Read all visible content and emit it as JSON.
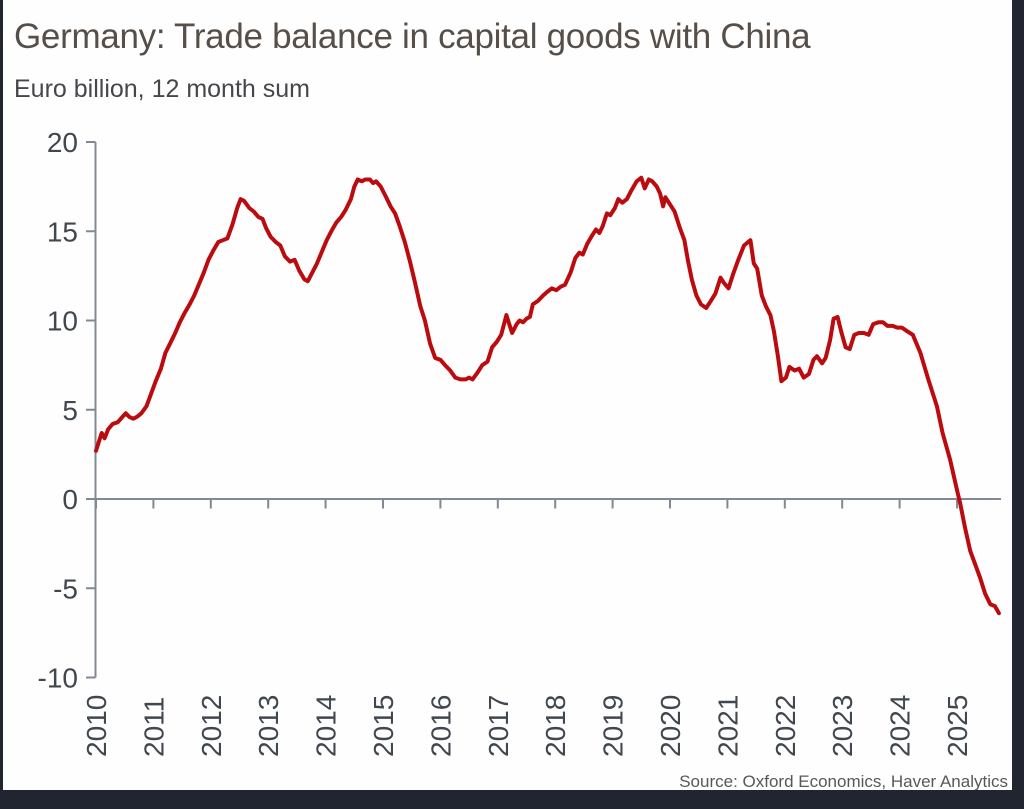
{
  "header": {
    "title": "Germany: Trade balance in capital goods with China",
    "subtitle": "Euro billion, 12 month sum"
  },
  "footer": {
    "source": "Source: Oxford Economics, Haver Analytics"
  },
  "colors": {
    "line_red": "#bc0b0f",
    "axis_gray": "#828992",
    "tick_label": "#41474f",
    "title_text": "#564f49",
    "subtitle_text": "#45474b",
    "source_text": "#585858",
    "frame_dark": "#212530",
    "background": "#ffffff"
  },
  "chart_data": {
    "type": "line",
    "title": "Germany: Trade balance in capital goods with China",
    "units": "Euro billion, 12 month sum",
    "xlabel": "",
    "ylabel": "",
    "ylim": [
      -10,
      20
    ],
    "x_range_years": [
      2010,
      2025.75
    ],
    "grid": "zero-line-only",
    "legend": "none",
    "y_ticks": [
      20,
      15,
      10,
      5,
      0,
      -5,
      -10
    ],
    "y_tick_labels": [
      "20",
      "15",
      "10",
      "5",
      "0",
      "-5",
      "-10"
    ],
    "x_tick_labels": [
      "2010",
      "2011",
      "2012",
      "2013",
      "2014",
      "2015",
      "2016",
      "2017",
      "2018",
      "2019",
      "2020",
      "2021",
      "2022",
      "2023",
      "2024",
      "2025"
    ],
    "series": [
      {
        "name": "Trade balance in capital goods with China, EUR bn 12m sum",
        "color": "#bc0b0f",
        "points": [
          [
            2010.0,
            2.7
          ],
          [
            2010.06,
            3.3
          ],
          [
            2010.1,
            3.7
          ],
          [
            2010.15,
            3.4
          ],
          [
            2010.21,
            3.9
          ],
          [
            2010.29,
            4.2
          ],
          [
            2010.38,
            4.3
          ],
          [
            2010.46,
            4.6
          ],
          [
            2010.52,
            4.8
          ],
          [
            2010.58,
            4.6
          ],
          [
            2010.65,
            4.5
          ],
          [
            2010.71,
            4.6
          ],
          [
            2010.79,
            4.8
          ],
          [
            2010.88,
            5.2
          ],
          [
            2010.96,
            5.9
          ],
          [
            2011.04,
            6.6
          ],
          [
            2011.13,
            7.3
          ],
          [
            2011.21,
            8.2
          ],
          [
            2011.29,
            8.7
          ],
          [
            2011.38,
            9.3
          ],
          [
            2011.46,
            9.9
          ],
          [
            2011.54,
            10.4
          ],
          [
            2011.63,
            10.9
          ],
          [
            2011.71,
            11.4
          ],
          [
            2011.79,
            12.0
          ],
          [
            2011.88,
            12.7
          ],
          [
            2011.96,
            13.4
          ],
          [
            2012.04,
            13.9
          ],
          [
            2012.13,
            14.4
          ],
          [
            2012.21,
            14.5
          ],
          [
            2012.29,
            14.6
          ],
          [
            2012.38,
            15.4
          ],
          [
            2012.46,
            16.3
          ],
          [
            2012.52,
            16.8
          ],
          [
            2012.58,
            16.7
          ],
          [
            2012.67,
            16.3
          ],
          [
            2012.75,
            16.1
          ],
          [
            2012.83,
            15.8
          ],
          [
            2012.9,
            15.7
          ],
          [
            2012.96,
            15.2
          ],
          [
            2013.04,
            14.7
          ],
          [
            2013.13,
            14.4
          ],
          [
            2013.21,
            14.2
          ],
          [
            2013.29,
            13.6
          ],
          [
            2013.38,
            13.3
          ],
          [
            2013.46,
            13.4
          ],
          [
            2013.54,
            12.8
          ],
          [
            2013.63,
            12.3
          ],
          [
            2013.69,
            12.2
          ],
          [
            2013.77,
            12.7
          ],
          [
            2013.85,
            13.2
          ],
          [
            2013.94,
            13.9
          ],
          [
            2014.02,
            14.5
          ],
          [
            2014.1,
            15.0
          ],
          [
            2014.19,
            15.5
          ],
          [
            2014.27,
            15.8
          ],
          [
            2014.35,
            16.2
          ],
          [
            2014.44,
            16.8
          ],
          [
            2014.5,
            17.5
          ],
          [
            2014.56,
            17.9
          ],
          [
            2014.63,
            17.8
          ],
          [
            2014.69,
            17.9
          ],
          [
            2014.77,
            17.9
          ],
          [
            2014.83,
            17.7
          ],
          [
            2014.88,
            17.8
          ],
          [
            2014.96,
            17.5
          ],
          [
            2015.04,
            17.0
          ],
          [
            2015.13,
            16.4
          ],
          [
            2015.21,
            16.0
          ],
          [
            2015.29,
            15.3
          ],
          [
            2015.38,
            14.4
          ],
          [
            2015.47,
            13.3
          ],
          [
            2015.56,
            12.1
          ],
          [
            2015.65,
            10.8
          ],
          [
            2015.73,
            10.0
          ],
          [
            2015.82,
            8.7
          ],
          [
            2015.91,
            7.9
          ],
          [
            2016.0,
            7.8
          ],
          [
            2016.08,
            7.5
          ],
          [
            2016.17,
            7.2
          ],
          [
            2016.26,
            6.8
          ],
          [
            2016.35,
            6.7
          ],
          [
            2016.44,
            6.7
          ],
          [
            2016.5,
            6.8
          ],
          [
            2016.56,
            6.7
          ],
          [
            2016.65,
            7.1
          ],
          [
            2016.73,
            7.5
          ],
          [
            2016.82,
            7.7
          ],
          [
            2016.9,
            8.5
          ],
          [
            2016.98,
            8.8
          ],
          [
            2017.06,
            9.2
          ],
          [
            2017.15,
            10.3
          ],
          [
            2017.25,
            9.3
          ],
          [
            2017.33,
            9.8
          ],
          [
            2017.38,
            10.0
          ],
          [
            2017.44,
            9.9
          ],
          [
            2017.5,
            10.1
          ],
          [
            2017.56,
            10.2
          ],
          [
            2017.61,
            10.9
          ],
          [
            2017.7,
            11.1
          ],
          [
            2017.79,
            11.4
          ],
          [
            2017.86,
            11.6
          ],
          [
            2017.94,
            11.8
          ],
          [
            2018.02,
            11.7
          ],
          [
            2018.1,
            11.9
          ],
          [
            2018.17,
            12.0
          ],
          [
            2018.27,
            12.7
          ],
          [
            2018.35,
            13.5
          ],
          [
            2018.42,
            13.8
          ],
          [
            2018.48,
            13.7
          ],
          [
            2018.56,
            14.3
          ],
          [
            2018.65,
            14.8
          ],
          [
            2018.71,
            15.1
          ],
          [
            2018.77,
            14.9
          ],
          [
            2018.83,
            15.3
          ],
          [
            2018.9,
            16.0
          ],
          [
            2018.96,
            15.9
          ],
          [
            2019.04,
            16.3
          ],
          [
            2019.1,
            16.8
          ],
          [
            2019.17,
            16.6
          ],
          [
            2019.25,
            16.8
          ],
          [
            2019.33,
            17.3
          ],
          [
            2019.42,
            17.8
          ],
          [
            2019.5,
            18.0
          ],
          [
            2019.56,
            17.4
          ],
          [
            2019.63,
            17.9
          ],
          [
            2019.69,
            17.8
          ],
          [
            2019.77,
            17.5
          ],
          [
            2019.83,
            17.1
          ],
          [
            2019.88,
            16.4
          ],
          [
            2019.92,
            16.9
          ],
          [
            2019.98,
            16.6
          ],
          [
            2020.08,
            16.1
          ],
          [
            2020.17,
            15.2
          ],
          [
            2020.25,
            14.5
          ],
          [
            2020.31,
            13.4
          ],
          [
            2020.38,
            12.3
          ],
          [
            2020.46,
            11.4
          ],
          [
            2020.54,
            10.9
          ],
          [
            2020.63,
            10.7
          ],
          [
            2020.71,
            11.1
          ],
          [
            2020.79,
            11.5
          ],
          [
            2020.88,
            12.4
          ],
          [
            2020.94,
            12.1
          ],
          [
            2021.02,
            11.8
          ],
          [
            2021.1,
            12.6
          ],
          [
            2021.19,
            13.4
          ],
          [
            2021.29,
            14.2
          ],
          [
            2021.4,
            14.5
          ],
          [
            2021.46,
            13.2
          ],
          [
            2021.52,
            12.9
          ],
          [
            2021.6,
            11.4
          ],
          [
            2021.67,
            10.8
          ],
          [
            2021.75,
            10.3
          ],
          [
            2021.81,
            9.4
          ],
          [
            2021.88,
            8.0
          ],
          [
            2021.94,
            6.6
          ],
          [
            2022.02,
            6.8
          ],
          [
            2022.08,
            7.4
          ],
          [
            2022.17,
            7.2
          ],
          [
            2022.25,
            7.3
          ],
          [
            2022.33,
            6.8
          ],
          [
            2022.42,
            7.0
          ],
          [
            2022.5,
            7.8
          ],
          [
            2022.56,
            8.0
          ],
          [
            2022.65,
            7.6
          ],
          [
            2022.71,
            7.9
          ],
          [
            2022.79,
            8.9
          ],
          [
            2022.85,
            10.1
          ],
          [
            2022.92,
            10.2
          ],
          [
            2022.98,
            9.4
          ],
          [
            2023.06,
            8.5
          ],
          [
            2023.13,
            8.4
          ],
          [
            2023.21,
            9.2
          ],
          [
            2023.29,
            9.3
          ],
          [
            2023.38,
            9.3
          ],
          [
            2023.46,
            9.2
          ],
          [
            2023.54,
            9.8
          ],
          [
            2023.63,
            9.9
          ],
          [
            2023.71,
            9.9
          ],
          [
            2023.79,
            9.7
          ],
          [
            2023.88,
            9.7
          ],
          [
            2023.96,
            9.6
          ],
          [
            2024.04,
            9.6
          ],
          [
            2024.13,
            9.4
          ],
          [
            2024.23,
            9.2
          ],
          [
            2024.36,
            8.2
          ],
          [
            2024.5,
            6.7
          ],
          [
            2024.65,
            5.2
          ],
          [
            2024.75,
            3.7
          ],
          [
            2024.88,
            2.2
          ],
          [
            2025.0,
            0.5
          ],
          [
            2025.06,
            -0.3
          ],
          [
            2025.14,
            -1.6
          ],
          [
            2025.23,
            -2.9
          ],
          [
            2025.31,
            -3.6
          ],
          [
            2025.4,
            -4.4
          ],
          [
            2025.49,
            -5.3
          ],
          [
            2025.58,
            -5.9
          ],
          [
            2025.66,
            -6.0
          ],
          [
            2025.73,
            -6.4
          ]
        ]
      }
    ]
  }
}
